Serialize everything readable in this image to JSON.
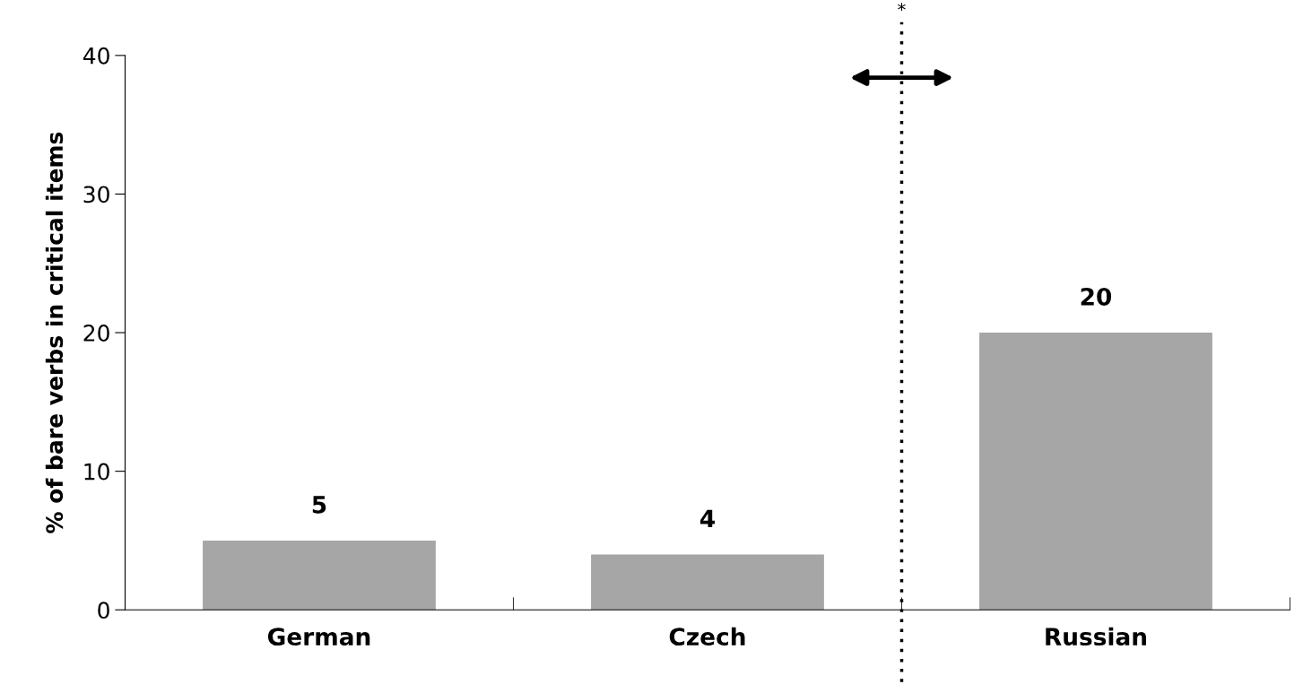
{
  "chart_data": {
    "type": "bar",
    "ylabel": "% of bare verbs in critical items",
    "categories": [
      "German",
      "Czech",
      "Russian"
    ],
    "values": [
      5,
      4,
      20
    ],
    "color": "#a6a6a6",
    "ylim": [
      0,
      40
    ],
    "yticks": [
      0,
      10,
      20,
      30,
      40
    ],
    "grid": false,
    "data_labels": true,
    "annotations": [
      "*"
    ]
  }
}
